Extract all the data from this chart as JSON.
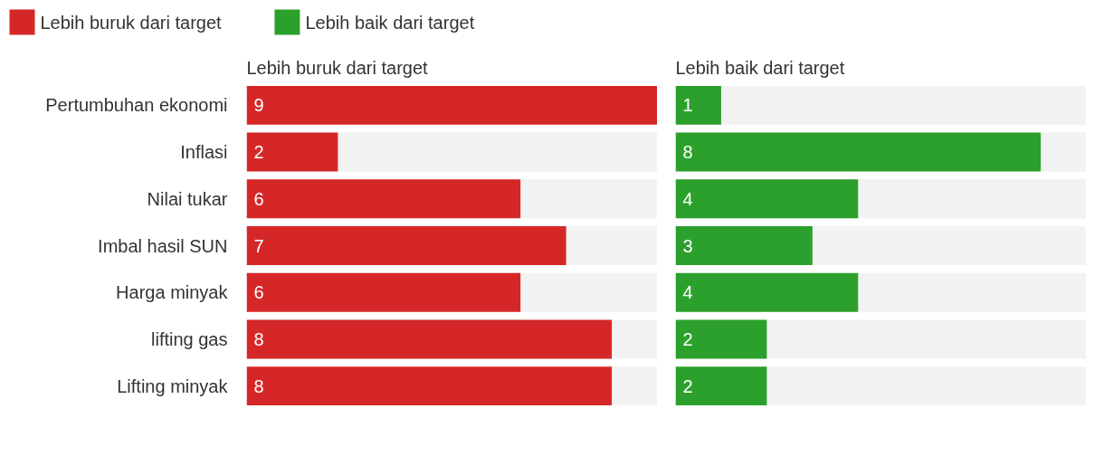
{
  "chart_data": [
    {
      "type": "bar",
      "orientation": "horizontal",
      "title": "Lebih buruk dari target",
      "categories": [
        "Pertumbuhan ekonomi",
        "Inflasi",
        "Nilai tukar",
        "Imbal hasil SUN",
        "Harga minyak",
        "lifting gas",
        "Lifting minyak"
      ],
      "series": [
        {
          "name": "Lebih buruk dari target",
          "color": "#d62728",
          "values": [
            9,
            2,
            6,
            7,
            6,
            8,
            8
          ]
        }
      ],
      "xlim": [
        0,
        9
      ],
      "tick_labels": "y",
      "data_labels": true,
      "legend": "top left"
    },
    {
      "type": "bar",
      "orientation": "horizontal",
      "title": "Lebih baik dari target",
      "categories": [
        null,
        null,
        null,
        null,
        null,
        null,
        null
      ],
      "series": [
        {
          "name": "Lebih baik dari target",
          "color": "#2ca02c",
          "values": [
            1,
            8,
            4,
            3,
            4,
            2,
            2
          ]
        }
      ],
      "xlim": [
        0,
        9
      ],
      "tick_labels": false,
      "data_labels": true,
      "legend": "top left"
    }
  ]
}
